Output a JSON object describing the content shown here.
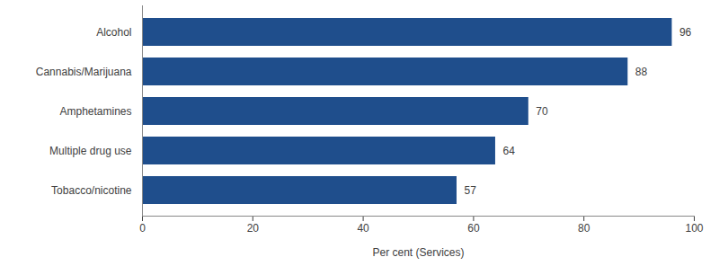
{
  "chart_data": {
    "type": "bar",
    "orientation": "horizontal",
    "categories": [
      "Alcohol",
      "Cannabis/Marijuana",
      "Amphetamines",
      "Multiple drug use",
      "Tobacco/nicotine"
    ],
    "values": [
      96,
      88,
      70,
      64,
      57
    ],
    "color": "#1f4e8c",
    "xlabel": "Per cent (Services)",
    "xlim": [
      0,
      100
    ],
    "xticks": [
      0,
      20,
      40,
      60,
      80,
      100
    ],
    "grid": false,
    "data_labels": true
  }
}
